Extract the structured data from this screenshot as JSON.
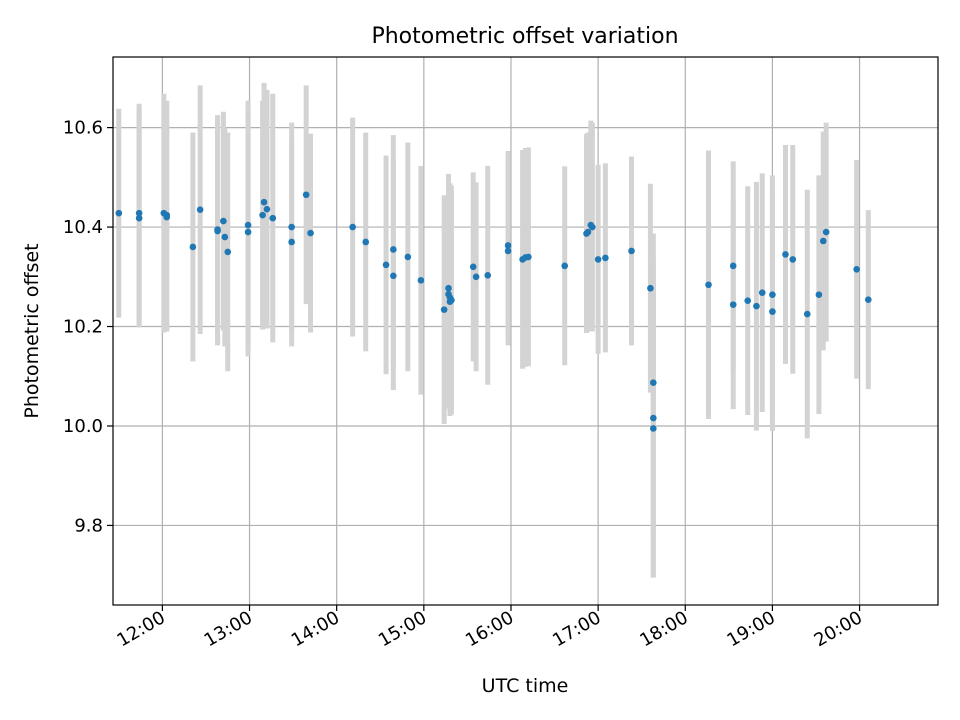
{
  "chart_data": {
    "type": "scatter",
    "title": "Photometric offset variation",
    "xlabel": "UTC time",
    "ylabel": "Photometric offset",
    "xlim": [
      "11:26",
      "20:54"
    ],
    "ylim": [
      9.64,
      10.742
    ],
    "x_ticks": [
      "12:00",
      "13:00",
      "14:00",
      "15:00",
      "16:00",
      "17:00",
      "18:00",
      "19:00",
      "20:00"
    ],
    "y_ticks": [
      "9.8",
      "10.0",
      "10.2",
      "10.4",
      "10.6"
    ],
    "grid": true,
    "colors": {
      "points": "#1f77b4",
      "error_bars": "#d3d3d3",
      "grid": "#b0b0b0"
    },
    "series": [
      {
        "x": [
          "11:30",
          "11:44",
          "11:44",
          "12:01",
          "12:03",
          "12:03",
          "12:21",
          "12:26",
          "12:38",
          "12:38",
          "12:42",
          "12:43",
          "12:45",
          "12:59",
          "12:59",
          "13:09",
          "13:10",
          "13:12",
          "13:16",
          "13:29",
          "13:29",
          "13:39",
          "13:42",
          "14:11",
          "14:20",
          "14:34",
          "14:39",
          "14:39",
          "14:49",
          "14:58",
          "15:14",
          "15:17",
          "15:17",
          "15:18",
          "15:18",
          "15:19",
          "15:34",
          "15:36",
          "15:44",
          "15:58",
          "15:58",
          "16:08",
          "16:10",
          "16:12",
          "16:37",
          "16:52",
          "16:53",
          "16:55",
          "16:56",
          "17:00",
          "17:05",
          "17:23",
          "17:36",
          "17:38",
          "17:38",
          "17:38",
          "18:16",
          "18:33",
          "18:33",
          "18:43",
          "18:49",
          "18:53",
          "19:00",
          "19:00",
          "19:09",
          "19:14",
          "19:24",
          "19:32",
          "19:35",
          "19:37",
          "19:58",
          "20:06"
        ],
        "y": [
          10.428,
          10.418,
          10.428,
          10.428,
          10.42,
          10.424,
          10.36,
          10.435,
          10.395,
          10.392,
          10.412,
          10.38,
          10.35,
          10.39,
          10.404,
          10.424,
          10.45,
          10.436,
          10.418,
          10.37,
          10.4,
          10.465,
          10.388,
          10.4,
          10.37,
          10.324,
          10.302,
          10.355,
          10.34,
          10.293,
          10.234,
          10.265,
          10.277,
          10.258,
          10.25,
          10.253,
          10.32,
          10.3,
          10.303,
          10.352,
          10.363,
          10.335,
          10.339,
          10.34,
          10.322,
          10.387,
          10.39,
          10.404,
          10.4,
          10.335,
          10.338,
          10.352,
          10.277,
          10.087,
          10.016,
          9.995,
          10.284,
          10.244,
          10.322,
          10.252,
          10.241,
          10.268,
          10.23,
          10.264,
          10.345,
          10.335,
          10.225,
          10.264,
          10.372,
          10.39,
          10.315,
          10.254
        ],
        "err": [
          0.21,
          0.22,
          0.22,
          0.24,
          0.23,
          0.23,
          0.23,
          0.25,
          0.23,
          0.23,
          0.22,
          0.22,
          0.24,
          0.25,
          0.25,
          0.23,
          0.24,
          0.24,
          0.25,
          0.21,
          0.21,
          0.22,
          0.2,
          0.22,
          0.22,
          0.22,
          0.23,
          0.23,
          0.23,
          0.23,
          0.23,
          0.23,
          0.23,
          0.23,
          0.23,
          0.23,
          0.19,
          0.19,
          0.22,
          0.19,
          0.19,
          0.22,
          0.22,
          0.22,
          0.2,
          0.2,
          0.2,
          0.21,
          0.21,
          0.19,
          0.19,
          0.19,
          0.21,
          0.3,
          0.32,
          0.3,
          0.27,
          0.21,
          0.21,
          0.23,
          0.25,
          0.24,
          0.24,
          0.24,
          0.22,
          0.23,
          0.25,
          0.24,
          0.22,
          0.22,
          0.22,
          0.18
        ]
      }
    ]
  }
}
